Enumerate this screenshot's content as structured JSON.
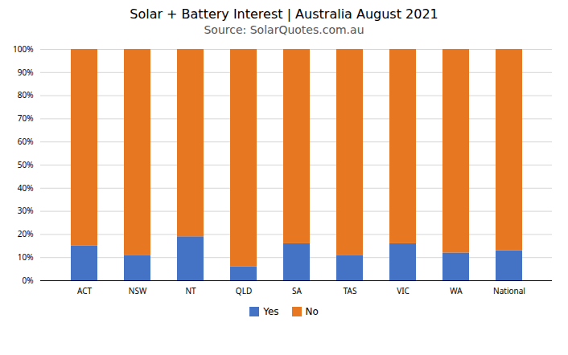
{
  "chart_data": {
    "type": "bar",
    "stacked": true,
    "title": "Solar + Battery Interest  |  Australia August 2021",
    "subtitle": "Source: SolarQuotes.com.au",
    "categories": [
      "ACT",
      "NSW",
      "NT",
      "QLD",
      "SA",
      "TAS",
      "VIC",
      "WA",
      "National"
    ],
    "series": [
      {
        "name": "Yes",
        "color": "#4472C4",
        "values": [
          15,
          11,
          19,
          6,
          16,
          11,
          16,
          12,
          13
        ]
      },
      {
        "name": "No",
        "color": "#E87722",
        "values": [
          85,
          89,
          81,
          94,
          84,
          89,
          84,
          88,
          87
        ]
      }
    ],
    "ylim": [
      0,
      100
    ],
    "yticks": [
      {
        "value": 0,
        "label": "0%"
      },
      {
        "value": 10,
        "label": "10%"
      },
      {
        "value": 20,
        "label": "20%"
      },
      {
        "value": 30,
        "label": "30%"
      },
      {
        "value": 40,
        "label": "40%"
      },
      {
        "value": 50,
        "label": "50%"
      },
      {
        "value": 60,
        "label": "60%"
      },
      {
        "value": 70,
        "label": "70%"
      },
      {
        "value": 80,
        "label": "80%"
      },
      {
        "value": 90,
        "label": "90%"
      },
      {
        "value": 100,
        "label": "100%"
      }
    ],
    "grid": true,
    "legend": "bottom"
  }
}
